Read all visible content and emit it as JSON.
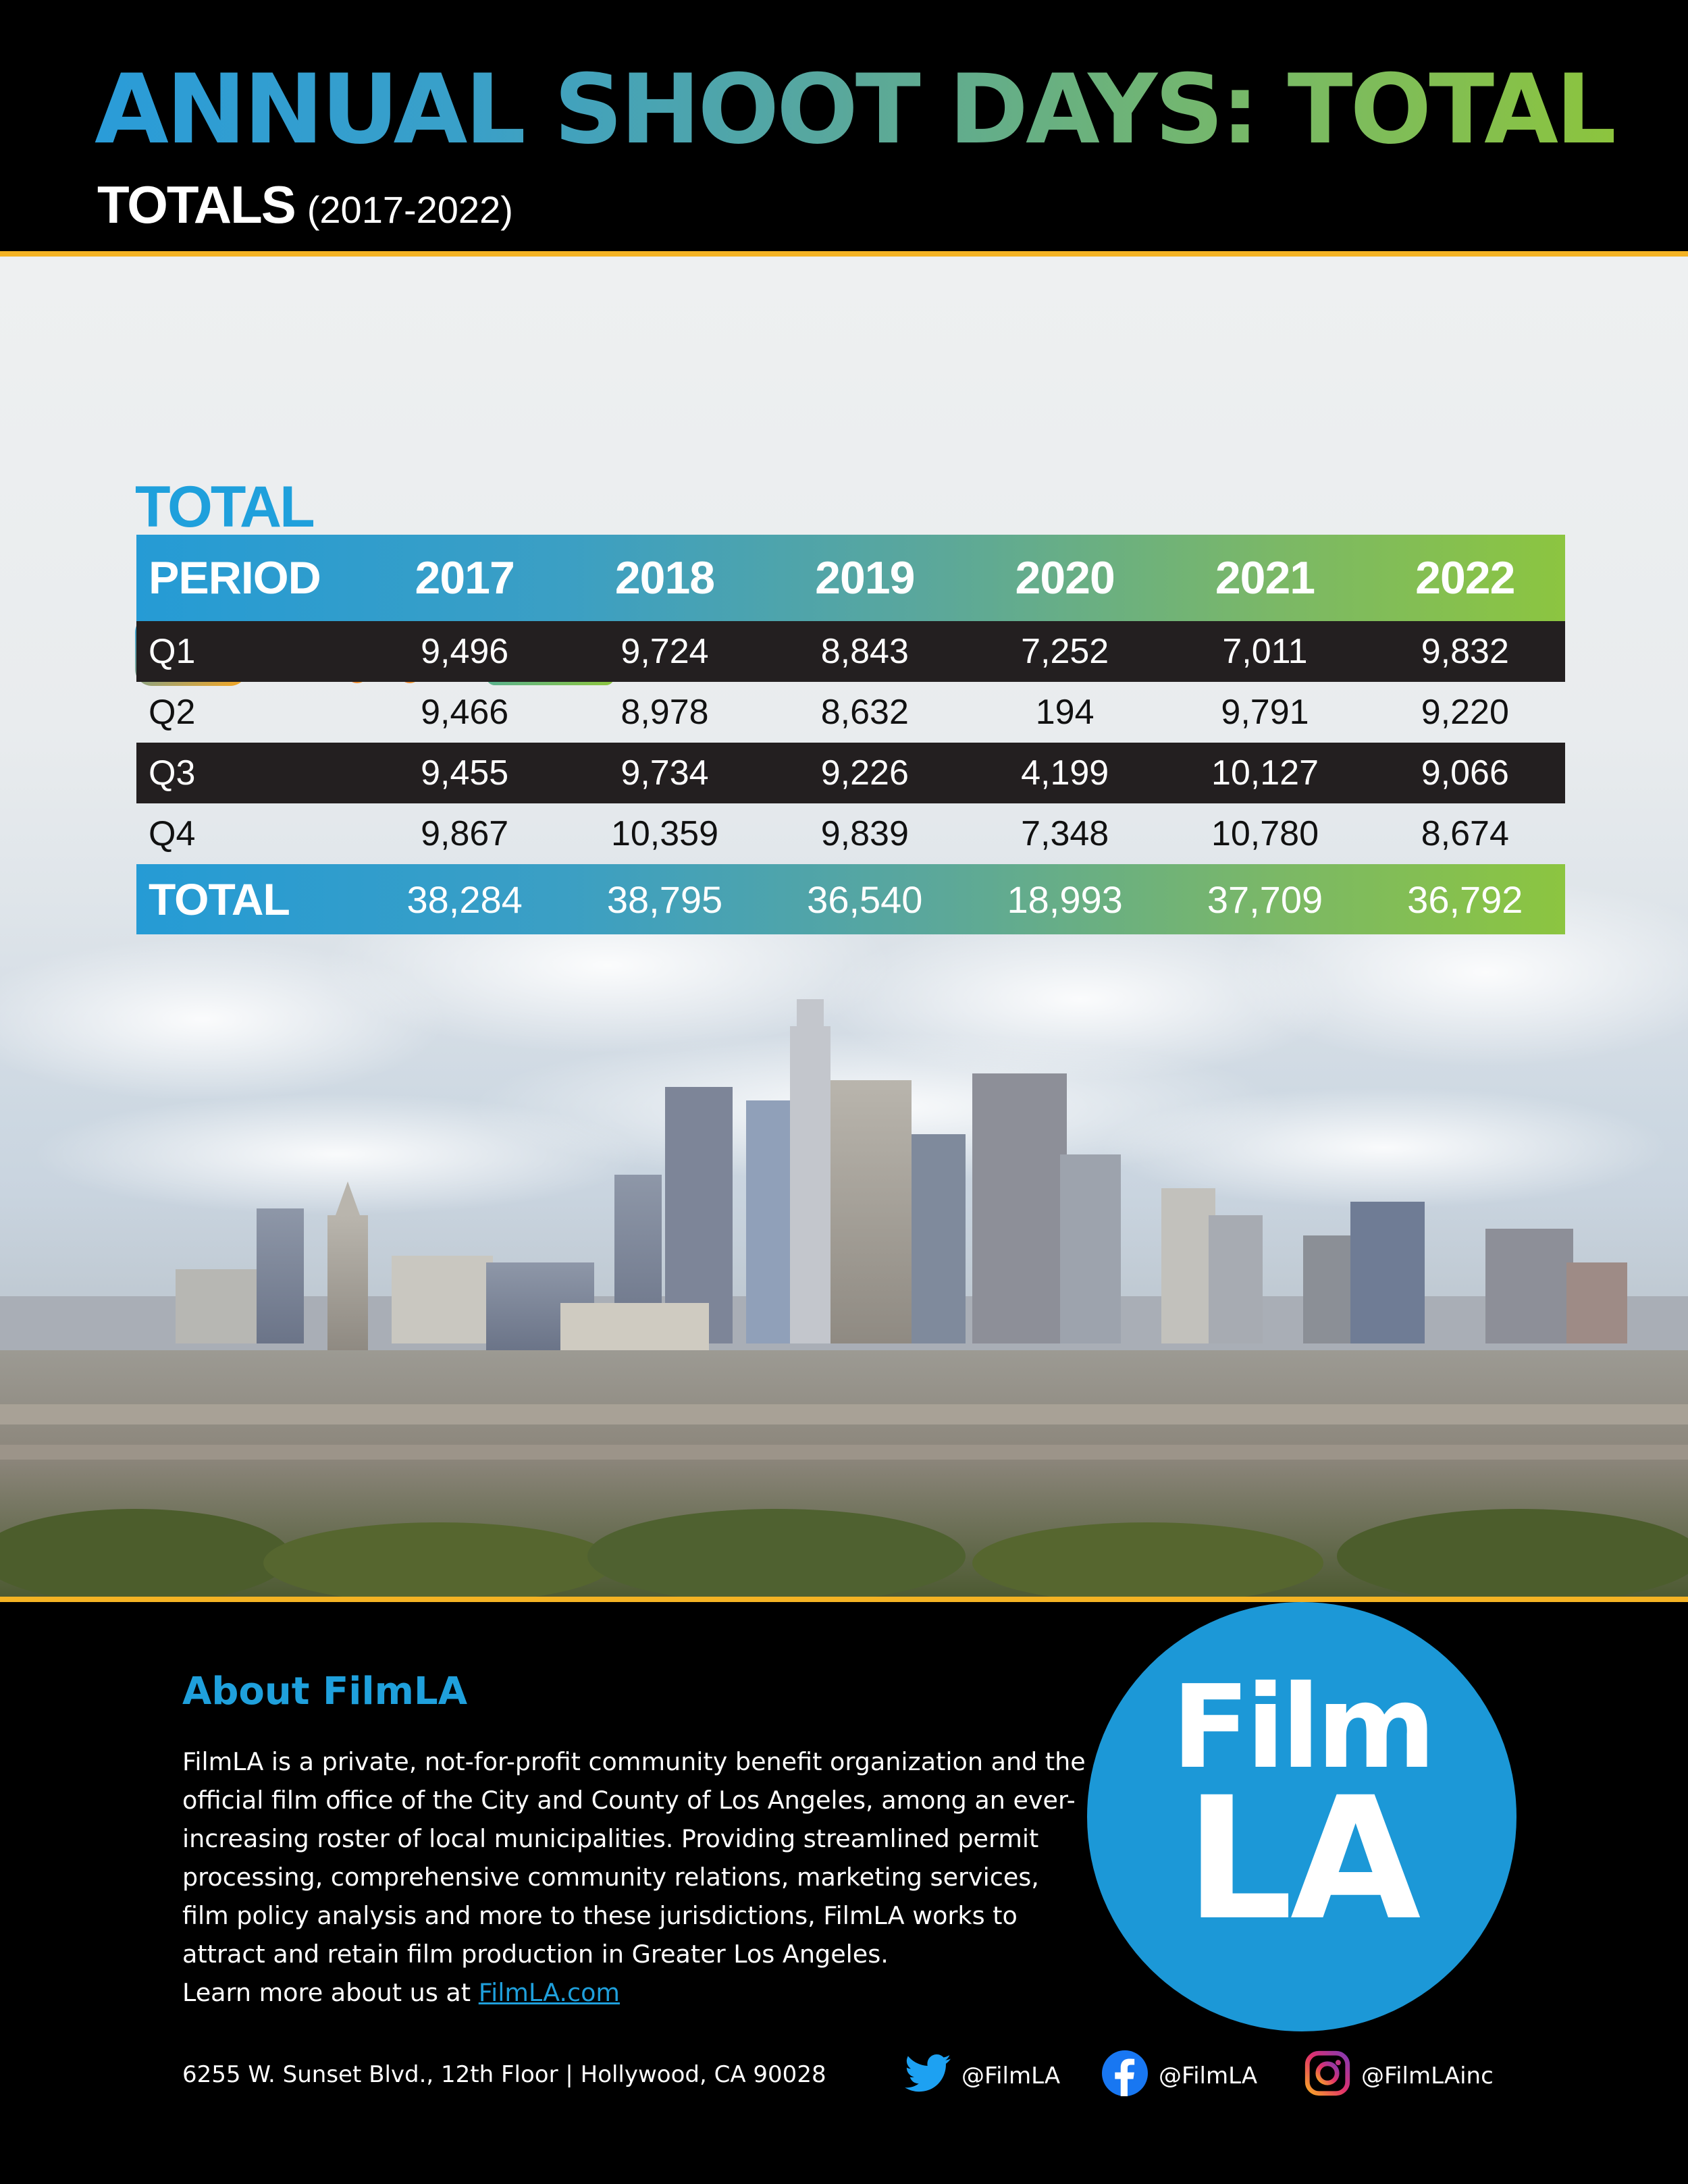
{
  "header": {
    "title": "ANNUAL SHOOT DAYS: TOTAL",
    "subtitle": "TOTALS",
    "subtitle_range": "(2017-2022)"
  },
  "icons": [
    "film-camera-icon",
    "shopping-cart-icon",
    "television-icon",
    "wireless-signal-icon"
  ],
  "table": {
    "label": "TOTAL",
    "columns": [
      "PERIOD",
      "2017",
      "2018",
      "2019",
      "2020",
      "2021",
      "2022"
    ],
    "rows": [
      [
        "Q1",
        "9,496",
        "9,724",
        "8,843",
        "7,252",
        "7,011",
        "9,832"
      ],
      [
        "Q2",
        "9,466",
        "8,978",
        "8,632",
        "194",
        "9,791",
        "9,220"
      ],
      [
        "Q3",
        "9,455",
        "9,734",
        "9,226",
        "4,199",
        "10,127",
        "9,066"
      ],
      [
        "Q4",
        "9,867",
        "10,359",
        "9,839",
        "7,348",
        "10,780",
        "8,674"
      ]
    ],
    "total_row": [
      "TOTAL",
      "38,284",
      "38,795",
      "36,540",
      "18,993",
      "37,709",
      "36,792"
    ]
  },
  "about": {
    "title": "About FilmLA",
    "body": "FilmLA is a private, not-for-profit community benefit organization and the official film office of the City and County of Los Angeles, among an ever-increasing roster of local municipalities. Providing streamlined permit processing, comprehensive community relations, marketing services, film policy analysis and more to these jurisdictions, FilmLA works to attract and retain film production in Greater Los Angeles.",
    "learn_more": "Learn more about us at",
    "link_text": "FilmLA.com"
  },
  "address": "6255 W. Sunset Blvd., 12th Floor  |  Hollywood, CA 90028",
  "logo": {
    "line1": "Film",
    "line2": "LA"
  },
  "social": {
    "twitter": "@FilmLA",
    "facebook": "@FilmLA",
    "instagram": "@FilmLAinc"
  },
  "colors": {
    "brand_blue": "#1c98d7",
    "gradient_start": "#259bd5",
    "gradient_end": "#8cc540",
    "accent_gold": "#f4b324",
    "dark_row": "#231f20"
  }
}
